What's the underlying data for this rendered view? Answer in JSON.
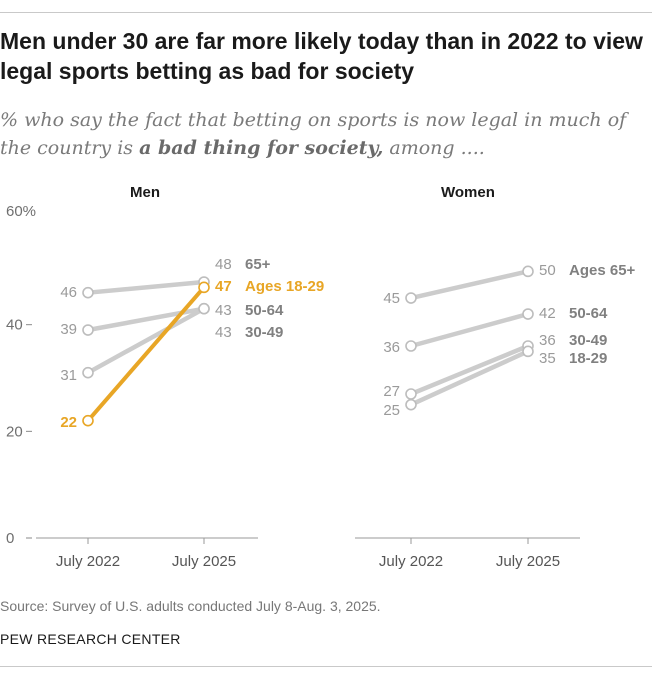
{
  "title": "Men under 30 are far more likely today than in 2022 to view legal sports betting as bad for society",
  "subtitle": {
    "part1": "% who say the fact that betting on sports is now legal in much of the country is ",
    "emphasis": "a bad thing for society,",
    "part2": " among ...."
  },
  "source": "Source: Survey of U.S. adults conducted July 8-Aug. 3, 2025.",
  "brand": "PEW RESEARCH CENTER",
  "colors": {
    "grey": "#cccccc",
    "highlight": "#e8a626",
    "label_grey": "#9a9a9a",
    "label_dark": "#808080"
  },
  "chart_data": [
    {
      "type": "line",
      "panel": "Men",
      "x": [
        "July 2022",
        "July 2025"
      ],
      "yticks": [
        "60%",
        "40",
        "20",
        "0"
      ],
      "ylim": [
        0,
        60
      ],
      "series": [
        {
          "name": "65+",
          "values": [
            46,
            48
          ],
          "highlight": false
        },
        {
          "name": "50-64",
          "values": [
            39,
            43
          ],
          "highlight": false
        },
        {
          "name": "30-49",
          "values": [
            31,
            43
          ],
          "highlight": false
        },
        {
          "name": "Ages 18-29",
          "values": [
            22,
            47
          ],
          "highlight": true
        }
      ]
    },
    {
      "type": "line",
      "panel": "Women",
      "x": [
        "July 2022",
        "July 2025"
      ],
      "ylim": [
        0,
        60
      ],
      "series": [
        {
          "name": "Ages 65+",
          "values": [
            45,
            50
          ],
          "highlight": false
        },
        {
          "name": "50-64",
          "values": [
            36,
            42
          ],
          "highlight": false
        },
        {
          "name": "30-49",
          "values": [
            27,
            36
          ],
          "highlight": false
        },
        {
          "name": "18-29",
          "values": [
            25,
            35
          ],
          "highlight": false
        }
      ]
    }
  ]
}
